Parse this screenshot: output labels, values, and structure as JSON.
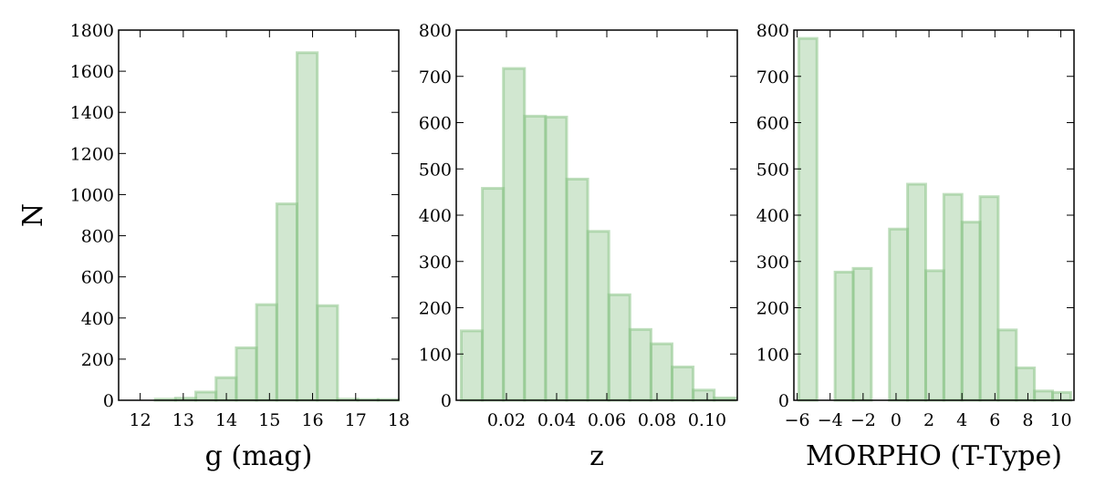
{
  "chart_data": [
    {
      "type": "histogram",
      "ylabel": "N",
      "xlabel": "g (mag)",
      "bins": [
        11.88,
        12.35,
        12.82,
        13.29,
        13.76,
        14.23,
        14.7,
        15.17,
        15.64,
        16.11,
        16.58,
        17.05,
        17.52,
        17.99
      ],
      "values": [
        0,
        5,
        10,
        40,
        110,
        255,
        465,
        955,
        1690,
        460,
        5,
        3,
        3
      ],
      "color": "#8cc489",
      "xlim": [
        11.5,
        18
      ],
      "xticks": [
        12,
        13,
        14,
        15,
        16,
        17,
        18
      ],
      "ylim": [
        0,
        1800
      ],
      "yticks": [
        0,
        200,
        400,
        600,
        800,
        1000,
        1200,
        1400,
        1600,
        1800
      ]
    },
    {
      "type": "histogram",
      "xlabel": "z",
      "bins": [
        0.002,
        0.0104,
        0.0188,
        0.0272,
        0.0356,
        0.044,
        0.0524,
        0.0608,
        0.0692,
        0.0776,
        0.086,
        0.0944,
        0.1028,
        0.1112
      ],
      "values": [
        150,
        458,
        717,
        614,
        612,
        478,
        365,
        228,
        153,
        122,
        72,
        22,
        5
      ],
      "color": "#8cc489",
      "xlim": [
        0,
        0.112
      ],
      "xticks": [
        0.02,
        0.04,
        0.06,
        0.08,
        {
          "value": 0.1,
          "label": "0.10"
        }
      ],
      "ylim": [
        0,
        800
      ],
      "yticks": [
        0,
        100,
        200,
        300,
        400,
        500,
        600,
        700,
        800
      ]
    },
    {
      "type": "histogram",
      "xlabel": "MORPHO (T-Type)",
      "bins": [
        -5.9,
        -4.8,
        -3.7,
        -2.6,
        -1.5,
        -0.4,
        0.7,
        1.8,
        2.9,
        4.0,
        5.1,
        6.2,
        7.3,
        8.4,
        9.5,
        10.6
      ],
      "values": [
        782,
        0,
        277,
        285,
        0,
        370,
        467,
        280,
        445,
        385,
        440,
        152,
        70,
        20,
        17
      ],
      "color": "#8cc489",
      "xlim": [
        -6.2,
        10.8
      ],
      "xticks": [
        {
          "value": -6,
          "label": "−6"
        },
        {
          "value": -4,
          "label": "−4"
        },
        {
          "value": -2,
          "label": "−2"
        },
        0,
        2,
        4,
        6,
        8,
        10
      ],
      "ylim": [
        0,
        800
      ],
      "yticks": [
        0,
        100,
        200,
        300,
        400,
        500,
        600,
        700,
        800
      ]
    }
  ]
}
